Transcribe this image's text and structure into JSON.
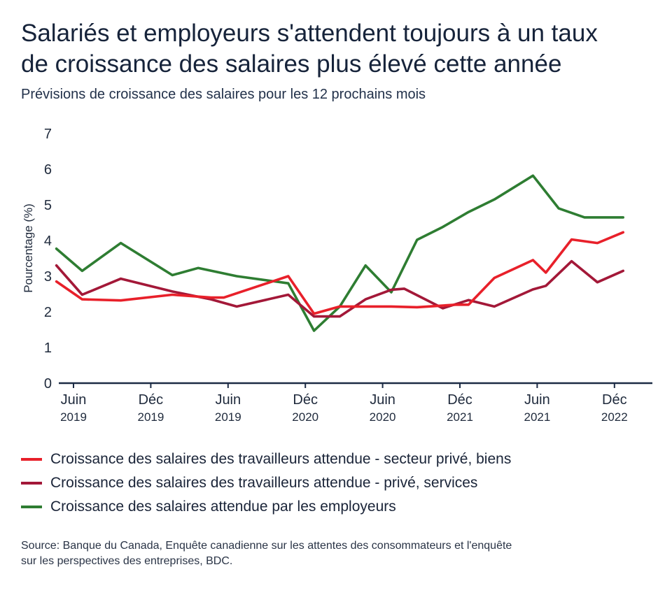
{
  "title_lines": [
    "Salariés et employeurs s'attendent toujours à un taux",
    "de croissance des salaires plus élevé cette année"
  ],
  "subtitle": "Prévisions de croissance des salaires pour les 12 prochains mois",
  "source_lines": [
    "Source: Banque du Canada, Enquête canadienne sur les attentes des consommateurs et l'enquête",
    "sur les perspectives des entreprises, BDC."
  ],
  "colors": {
    "private_goods": "#e8202a",
    "private_services": "#a31838",
    "employers": "#2e7d32",
    "axis": "#1c2b45",
    "text": "#1f2a3c"
  },
  "chart_data": {
    "type": "line",
    "title": "Salariés et employeurs s'attendent toujours à un taux de croissance des salaires plus élevé cette année",
    "subtitle": "Prévisions de croissance des salaires pour les 12 prochains mois",
    "ylabel": "Pourcentage (%)",
    "ylim": [
      0,
      7
    ],
    "yticks": [
      0,
      1,
      2,
      3,
      4,
      5,
      6,
      7
    ],
    "grid": false,
    "legend_position": "bottom",
    "x_ticks": [
      {
        "idx": 0,
        "month": "Juin",
        "year": "2019"
      },
      {
        "idx": 6,
        "month": "Déc",
        "year": "2019"
      },
      {
        "idx": 12,
        "month": "Juin",
        "year": "2019"
      },
      {
        "idx": 18,
        "month": "Déc",
        "year": "2020"
      },
      {
        "idx": 24,
        "month": "Juin",
        "year": "2020"
      },
      {
        "idx": 30,
        "month": "Déc",
        "year": "2021"
      },
      {
        "idx": 36,
        "month": "Juin",
        "year": "2021"
      },
      {
        "idx": 42,
        "month": "Déc",
        "year": "2022"
      }
    ],
    "x_max": 43,
    "series": [
      {
        "name": "Croissance des salaires des travailleurs attendue - secteur privé, biens",
        "color": "#e8202a",
        "points": [
          [
            -1,
            2.85
          ],
          [
            1,
            2.35
          ],
          [
            4,
            2.32
          ],
          [
            8,
            2.48
          ],
          [
            11,
            2.4
          ],
          [
            12,
            2.4
          ],
          [
            17,
            3.0
          ],
          [
            19,
            1.95
          ],
          [
            21,
            2.15
          ],
          [
            25,
            2.15
          ],
          [
            27,
            2.13
          ],
          [
            30,
            2.2
          ],
          [
            31,
            2.2
          ],
          [
            33,
            2.95
          ],
          [
            36,
            3.45
          ],
          [
            37,
            3.1
          ],
          [
            39,
            4.03
          ],
          [
            41,
            3.93
          ],
          [
            43,
            4.23
          ]
        ]
      },
      {
        "name": "Croissance des salaires des travailleurs attendue - privé, services",
        "color": "#a31838",
        "points": [
          [
            -1,
            3.3
          ],
          [
            1,
            2.48
          ],
          [
            4,
            2.93
          ],
          [
            8,
            2.57
          ],
          [
            11,
            2.35
          ],
          [
            13,
            2.15
          ],
          [
            17,
            2.48
          ],
          [
            19,
            1.87
          ],
          [
            21,
            1.87
          ],
          [
            23,
            2.35
          ],
          [
            25,
            2.62
          ],
          [
            26,
            2.65
          ],
          [
            29,
            2.1
          ],
          [
            31,
            2.33
          ],
          [
            33,
            2.15
          ],
          [
            36,
            2.63
          ],
          [
            37,
            2.73
          ],
          [
            39,
            3.42
          ],
          [
            41,
            2.83
          ],
          [
            43,
            3.15
          ]
        ]
      },
      {
        "name": "Croissance des salaires attendue par les employeurs",
        "color": "#2e7d32",
        "points": [
          [
            -1,
            3.77
          ],
          [
            1,
            3.15
          ],
          [
            4,
            3.93
          ],
          [
            8,
            3.03
          ],
          [
            10,
            3.23
          ],
          [
            13,
            3.0
          ],
          [
            16,
            2.85
          ],
          [
            17,
            2.8
          ],
          [
            19,
            1.47
          ],
          [
            21,
            2.15
          ],
          [
            23,
            3.3
          ],
          [
            25,
            2.55
          ],
          [
            27,
            4.02
          ],
          [
            29,
            4.38
          ],
          [
            31,
            4.8
          ],
          [
            33,
            5.15
          ],
          [
            36,
            5.82
          ],
          [
            38,
            4.9
          ],
          [
            40,
            4.65
          ],
          [
            43,
            4.65
          ]
        ]
      }
    ]
  }
}
